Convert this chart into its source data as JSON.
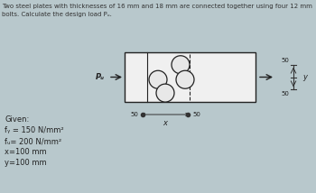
{
  "title_line1": "Two steel plates with thicknesses of 16 mm and 18 mm are connected together using four 12 mm",
  "title_line2": "bolts. Calculate the design load Pᵤ.",
  "background_color": "#b8c8cc",
  "given_lines": [
    "Given:",
    "fᵧ = 150 N/mm²",
    "fᵤ= 200 N/mm²",
    "x=100 mm",
    "y=100 mm"
  ],
  "Pu_label": "Pᵤ",
  "y_label": "y",
  "x_label": "x"
}
